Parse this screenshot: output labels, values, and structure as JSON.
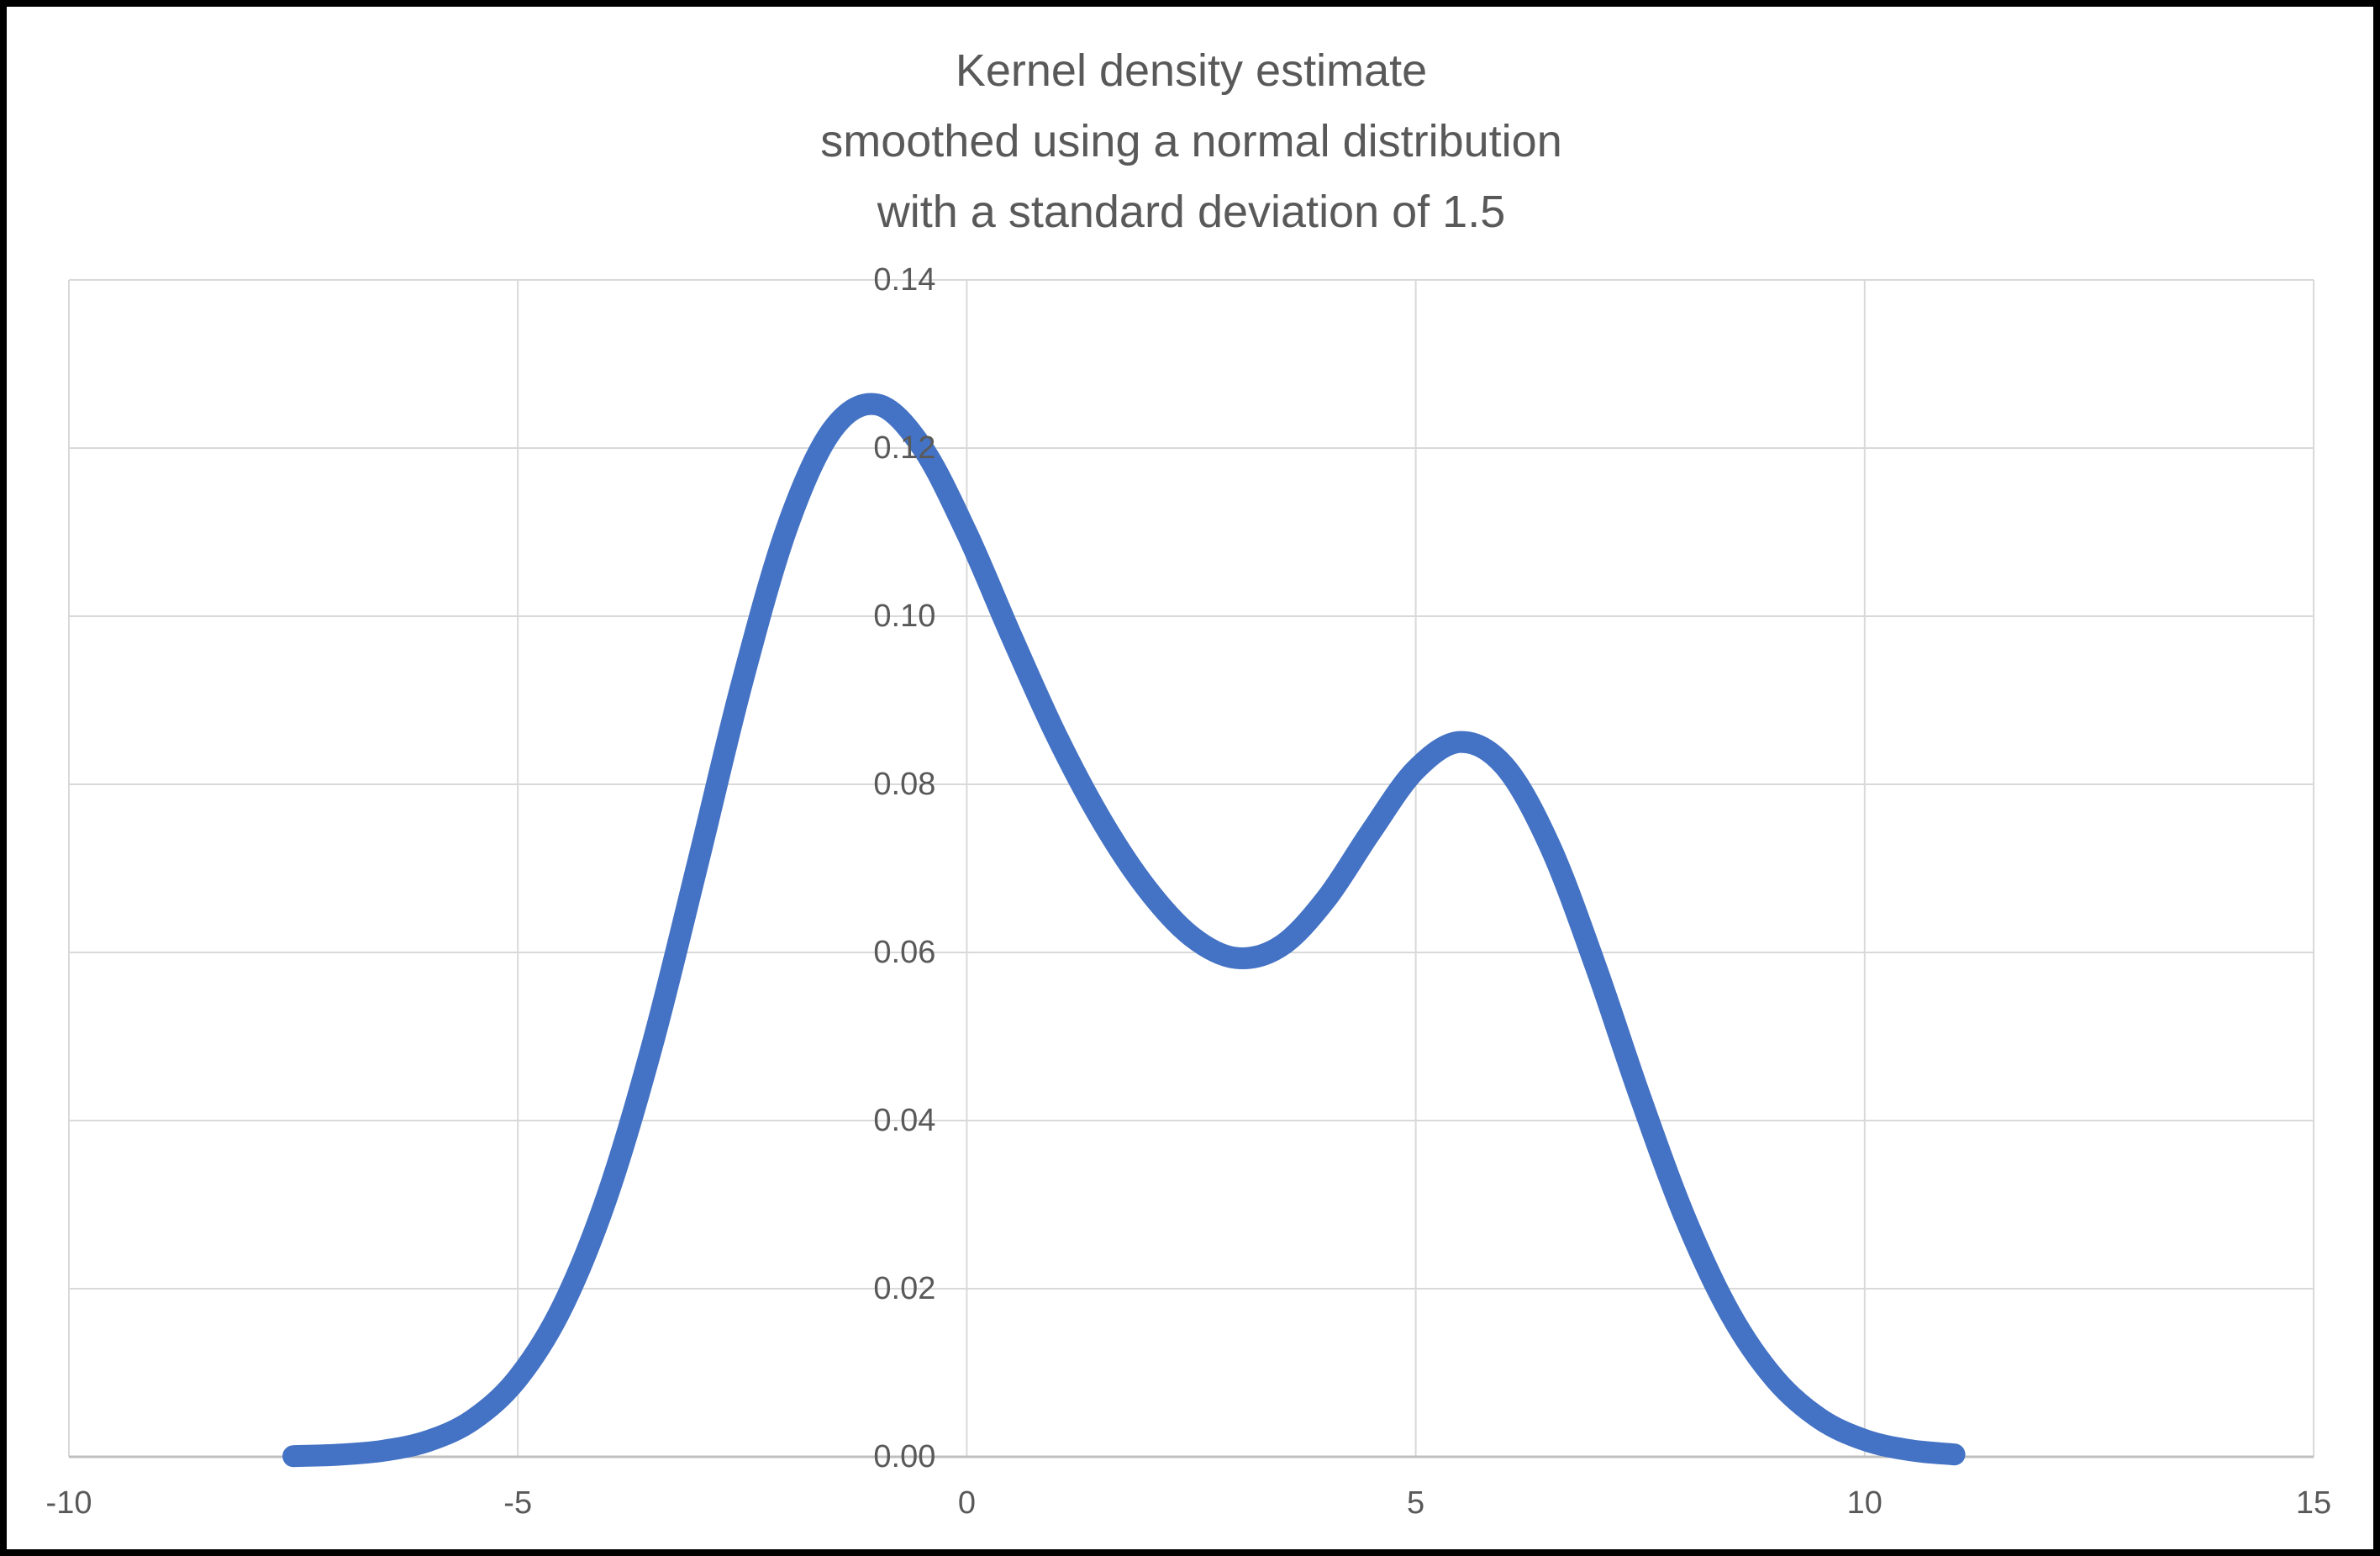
{
  "title": {
    "lines": [
      "Kernel density estimate",
      "smoothed using a normal distribution",
      "with a standard deviation of 1.5"
    ]
  },
  "colors": {
    "background": "#FFFFFF",
    "frame_border": "#000000",
    "gridline": "#D9D9D9",
    "axis_line": "#BFBFBF",
    "tick_label": "#595959",
    "title_text": "#595959",
    "curve": "#4472C4"
  },
  "chart_data": {
    "type": "line",
    "title": "Kernel density estimate smoothed using a normal distribution with a standard deviation of 1.5",
    "xlabel": "",
    "ylabel": "",
    "xlim": [
      -10,
      15
    ],
    "ylim": [
      0,
      0.14
    ],
    "x_ticks": [
      -10,
      -5,
      0,
      5,
      10,
      15
    ],
    "x_tick_labels": [
      "-10",
      "-5",
      "0",
      "5",
      "10",
      "15"
    ],
    "y_ticks": [
      0,
      0.02,
      0.04,
      0.06,
      0.08,
      0.1,
      0.12,
      0.14
    ],
    "y_tick_labels": [
      "0.00",
      "0.02",
      "0.04",
      "0.06",
      "0.08",
      "0.10",
      "0.12",
      "0.14"
    ],
    "grid": true,
    "legend": false,
    "series": [
      {
        "name": "kde_curve",
        "color": "#4472C4",
        "stroke_width": 26,
        "x": [
          -7.5,
          -7,
          -6.5,
          -6,
          -5.5,
          -5,
          -4.5,
          -4,
          -3.5,
          -3,
          -2.5,
          -2,
          -1.5,
          -1,
          -0.5,
          0,
          0.5,
          1,
          1.5,
          2,
          2.5,
          3,
          3.5,
          4,
          4.5,
          5,
          5.5,
          6,
          6.5,
          7,
          7.5,
          8,
          8.5,
          9,
          9.5,
          10,
          10.5,
          11
        ],
        "y": [
          8e-05,
          0.00025,
          0.00072,
          0.00188,
          0.00441,
          0.00936,
          0.01794,
          0.03115,
          0.0491,
          0.07043,
          0.0922,
          0.11059,
          0.12213,
          0.12518,
          0.12014,
          0.10989,
          0.09757,
          0.08578,
          0.07572,
          0.06767,
          0.06193,
          0.05934,
          0.06077,
          0.06633,
          0.07434,
          0.08173,
          0.08504,
          0.08203,
          0.07252,
          0.05846,
          0.04281,
          0.02843,
          0.01708,
          0.00928,
          0.00454,
          0.002,
          0.00079,
          0.00028
        ]
      }
    ]
  }
}
